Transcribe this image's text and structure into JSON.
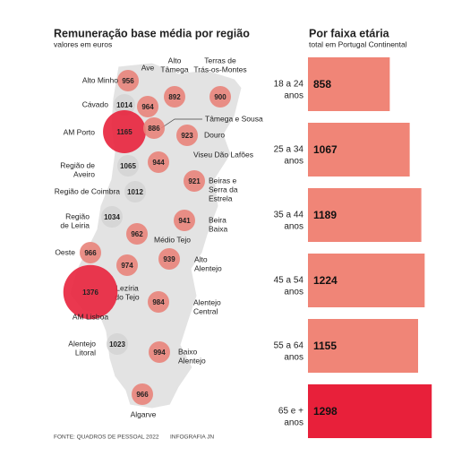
{
  "map": {
    "title": "Remuneração base média por região",
    "subtitle": "valores em euros",
    "regions": [
      {
        "name": [
          "Alto Minho"
        ],
        "value": 956,
        "color": "#e8837a"
      },
      {
        "name": [
          "Ave"
        ],
        "value": 964,
        "color": "#e8837a"
      },
      {
        "name": [
          "Alto",
          "Tâmega"
        ],
        "value": 892,
        "color": "#e8837a"
      },
      {
        "name": [
          "Terras de",
          "Trás-os-Montes"
        ],
        "value": 900,
        "color": "#e8837a"
      },
      {
        "name": [
          "Cávado"
        ],
        "value": 1014,
        "color": "#d4d4d4"
      },
      {
        "name": [
          "AM Porto"
        ],
        "value": 1165,
        "color": "#e8223c"
      },
      {
        "name": [
          "Tâmega e Sousa"
        ],
        "value": 886,
        "color": "#e8837a"
      },
      {
        "name": [
          "Douro"
        ],
        "value": 923,
        "color": "#e8837a"
      },
      {
        "name": [
          "Região de",
          "Aveiro"
        ],
        "value": 1065,
        "color": "#d4d4d4"
      },
      {
        "name": [
          "Viseu Dão Lafões"
        ],
        "value": 944,
        "color": "#e8837a"
      },
      {
        "name": [
          "Beiras e",
          "Serra da",
          "Estrela"
        ],
        "value": 921,
        "color": "#e8837a"
      },
      {
        "name": [
          "Região de Coimbra"
        ],
        "value": 1012,
        "color": "#d4d4d4"
      },
      {
        "name": [
          "Região",
          "de Leiria"
        ],
        "value": 1034,
        "color": "#d4d4d4"
      },
      {
        "name": [
          "Beira",
          "Baixa"
        ],
        "value": 941,
        "color": "#e8837a"
      },
      {
        "name": [
          "Médio Tejo"
        ],
        "value": 962,
        "color": "#e8837a"
      },
      {
        "name": [
          "Oeste"
        ],
        "value": 966,
        "color": "#e8837a"
      },
      {
        "name": [
          "Alto",
          "Alentejo"
        ],
        "value": 939,
        "color": "#e8837a"
      },
      {
        "name": [
          "Lezíria",
          "do Tejo"
        ],
        "value": 974,
        "color": "#e8837a"
      },
      {
        "name": [
          "AM Lisboa"
        ],
        "value": 1376,
        "color": "#e8223c"
      },
      {
        "name": [
          "Alentejo",
          "Central"
        ],
        "value": 984,
        "color": "#e8837a"
      },
      {
        "name": [
          "Alentejo",
          "Litoral"
        ],
        "value": 1023,
        "color": "#d4d4d4"
      },
      {
        "name": [
          "Baixo",
          "Alentejo"
        ],
        "value": 994,
        "color": "#e8837a"
      },
      {
        "name": [
          "Algarve"
        ],
        "value": 966,
        "color": "#e8837a"
      }
    ]
  },
  "chart_data": {
    "type": "bar",
    "title": "Por faixa etária",
    "subtitle": "total em Portugal Continental",
    "categories": [
      [
        "18 a 24",
        "anos"
      ],
      [
        "25 a 34",
        "anos"
      ],
      [
        "35 a 44",
        "anos"
      ],
      [
        "45 a 54",
        "anos"
      ],
      [
        "55 a 64",
        "anos"
      ],
      [
        "65 e +",
        "anos"
      ]
    ],
    "values": [
      858,
      1067,
      1189,
      1224,
      1155,
      1298
    ],
    "colors": [
      "#f08577",
      "#f08577",
      "#f08577",
      "#f08577",
      "#f08577",
      "#e8203a"
    ]
  },
  "footer": {
    "source": "FONTE: QUADROS DE PESSOAL 2022",
    "credit": "INFOGRAFIA JN"
  }
}
